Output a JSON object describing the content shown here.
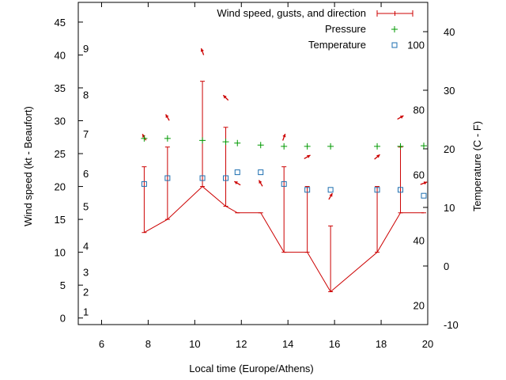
{
  "chart_data": {
    "type": "line",
    "xlabel": "Local time (Europe/Athens)",
    "ylabel": "Wind speed (kt - Beaufort)",
    "y2label": "Temperature (C - F)",
    "xlim": [
      5,
      20
    ],
    "ylim": [
      -1,
      48
    ],
    "y2lim": [
      -10,
      45
    ],
    "x_ticks": [
      "6",
      "8",
      "10",
      "12",
      "14",
      "16",
      "18",
      "20"
    ],
    "y_ticks": [
      "0",
      "5",
      "10",
      "15",
      "20",
      "25",
      "30",
      "35",
      "40",
      "45"
    ],
    "y2_ticks": [
      "-10",
      "0",
      "10",
      "20",
      "30",
      "40"
    ],
    "beaufort_labels": [
      {
        "label": "1",
        "y": 1
      },
      {
        "label": "2",
        "y": 4
      },
      {
        "label": "3",
        "y": 7
      },
      {
        "label": "4",
        "y": 11
      },
      {
        "label": "5",
        "y": 17
      },
      {
        "label": "6",
        "y": 22
      },
      {
        "label": "7",
        "y": 28
      },
      {
        "label": "8",
        "y": 34
      },
      {
        "label": "9",
        "y": 41
      }
    ],
    "fahrenheit_labels": [
      {
        "label": "20",
        "t": -6.7
      },
      {
        "label": "40",
        "t": 4.4
      },
      {
        "label": "60",
        "t": 15.6
      },
      {
        "label": "80",
        "t": 26.7
      },
      {
        "label": "100",
        "t": 37.8
      }
    ],
    "grid": false,
    "legend_position": "top-right",
    "series": [
      {
        "name": "Wind speed, gusts, and direction",
        "color": "#cc0000",
        "points": [
          {
            "x": 7.83,
            "speed": 13,
            "gust": 23,
            "dir": 330
          },
          {
            "x": 8.83,
            "speed": 15,
            "gust": 26,
            "dir": 330
          },
          {
            "x": 10.33,
            "speed": 20,
            "gust": 36,
            "dir": 340
          },
          {
            "x": 11.33,
            "speed": 17,
            "gust": 29,
            "dir": 315
          },
          {
            "x": 11.83,
            "speed": 16,
            "gust": 16,
            "dir": 300
          },
          {
            "x": 12.83,
            "speed": 16,
            "gust": 16,
            "dir": 330
          },
          {
            "x": 13.83,
            "speed": 10,
            "gust": 23,
            "dir": 20
          },
          {
            "x": 14.83,
            "speed": 10,
            "gust": 20,
            "dir": 60
          },
          {
            "x": 15.83,
            "speed": 4,
            "gust": 14,
            "dir": 30
          },
          {
            "x": 17.83,
            "speed": 10,
            "gust": 20,
            "dir": 50
          },
          {
            "x": 18.83,
            "speed": 16,
            "gust": 26,
            "dir": 60
          },
          {
            "x": 19.83,
            "speed": 16,
            "gust": 16,
            "dir": 70
          }
        ]
      },
      {
        "name": "Pressure",
        "color": "#009900",
        "points": [
          {
            "x": 7.83,
            "y": 27.3
          },
          {
            "x": 8.83,
            "y": 27.3
          },
          {
            "x": 10.33,
            "y": 27.0
          },
          {
            "x": 11.33,
            "y": 26.8
          },
          {
            "x": 11.83,
            "y": 26.6
          },
          {
            "x": 12.83,
            "y": 26.3
          },
          {
            "x": 13.83,
            "y": 26.1
          },
          {
            "x": 14.83,
            "y": 26.1
          },
          {
            "x": 15.83,
            "y": 26.1
          },
          {
            "x": 17.83,
            "y": 26.1
          },
          {
            "x": 18.83,
            "y": 26.1
          },
          {
            "x": 19.83,
            "y": 26.2
          }
        ]
      },
      {
        "name": "Temperature",
        "color": "#1e6fb0",
        "points": [
          {
            "x": 7.83,
            "t": 14
          },
          {
            "x": 8.83,
            "t": 15
          },
          {
            "x": 10.33,
            "t": 15
          },
          {
            "x": 11.33,
            "t": 15
          },
          {
            "x": 11.83,
            "t": 16
          },
          {
            "x": 12.83,
            "t": 16
          },
          {
            "x": 13.83,
            "t": 14
          },
          {
            "x": 14.83,
            "t": 13
          },
          {
            "x": 15.83,
            "t": 13
          },
          {
            "x": 17.83,
            "t": 13
          },
          {
            "x": 18.83,
            "t": 13
          },
          {
            "x": 19.83,
            "t": 12
          }
        ]
      }
    ]
  }
}
